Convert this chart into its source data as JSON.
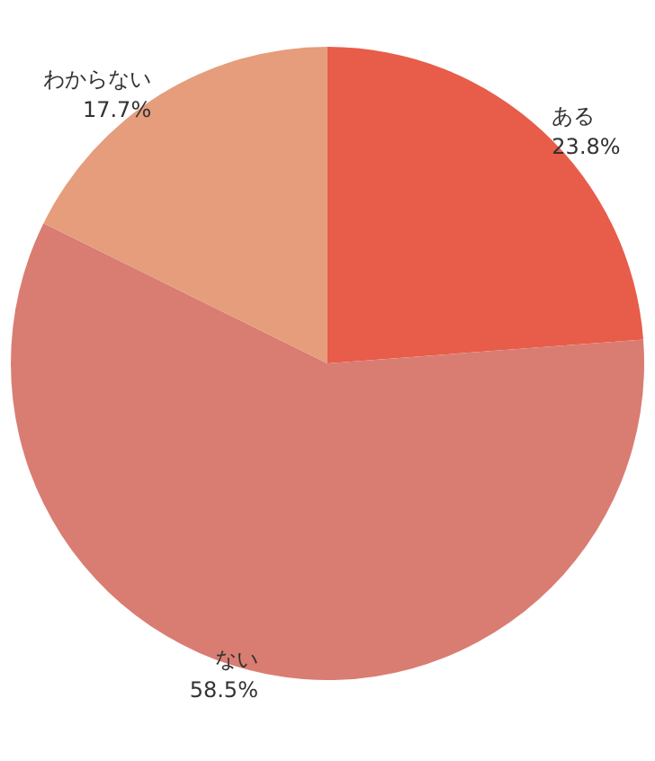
{
  "chart_data": {
    "type": "pie",
    "categories": [
      "ある",
      "ない",
      "わからない"
    ],
    "values": [
      23.8,
      58.5,
      17.7
    ],
    "value_labels": [
      "23.8%",
      "58.5%",
      "17.7%"
    ],
    "colors": [
      "#e85c4a",
      "#d97d72",
      "#e59d7c"
    ],
    "legend": false
  }
}
